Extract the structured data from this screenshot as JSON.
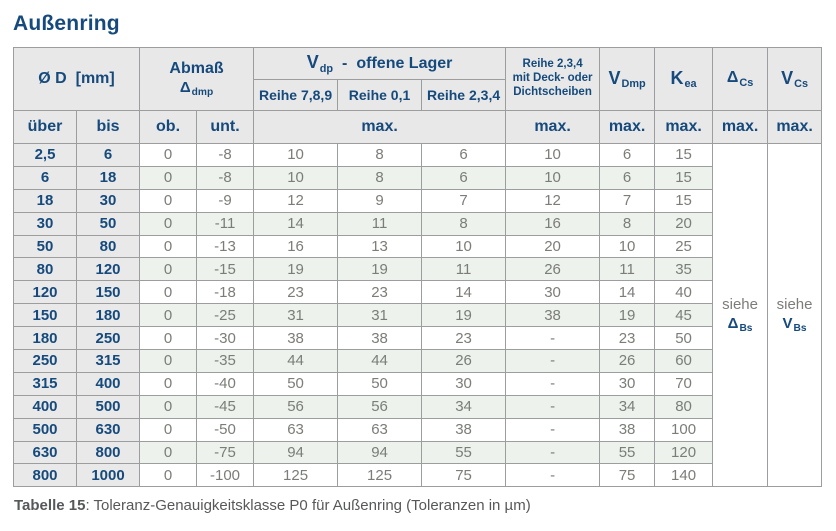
{
  "title": "Außenring",
  "header": {
    "d_label": "Ø D",
    "d_unit": "[mm]",
    "abmass_line1": "Abmaß",
    "abmass_symbol": "Δ",
    "abmass_sub": "dmp",
    "vdp_symbol": "V",
    "vdp_sub": "dp",
    "vdp_dash": "-",
    "vdp_rest": "offene Lager",
    "reihe789": "Reihe 7,8,9",
    "reihe01": "Reihe 0,1",
    "reihe234": "Reihe 2,3,4",
    "deck_line1": "Reihe 2,3,4",
    "deck_line2": "mit Deck- oder",
    "deck_line3": "Dichtscheiben",
    "vdmp_base": "V",
    "vdmp_sub": "Dmp",
    "kea_base": "K",
    "kea_sub": "ea",
    "dcs_base": "Δ",
    "dcs_sub": "Cs",
    "vcs_base": "V",
    "vcs_sub": "Cs",
    "ueber": "über",
    "bis": "bis",
    "ob": "ob.",
    "unt": "unt.",
    "max": "max."
  },
  "siehe": {
    "word": "siehe",
    "delta_symbol": "Δ",
    "delta_sub": "Bs",
    "v_symbol": "V",
    "v_sub": "Bs"
  },
  "rows": [
    [
      "2,5",
      "6",
      "0",
      "-8",
      "10",
      "8",
      "6",
      "10",
      "6",
      "15"
    ],
    [
      "6",
      "18",
      "0",
      "-8",
      "10",
      "8",
      "6",
      "10",
      "6",
      "15"
    ],
    [
      "18",
      "30",
      "0",
      "-9",
      "12",
      "9",
      "7",
      "12",
      "7",
      "15"
    ],
    [
      "30",
      "50",
      "0",
      "-11",
      "14",
      "11",
      "8",
      "16",
      "8",
      "20"
    ],
    [
      "50",
      "80",
      "0",
      "-13",
      "16",
      "13",
      "10",
      "20",
      "10",
      "25"
    ],
    [
      "80",
      "120",
      "0",
      "-15",
      "19",
      "19",
      "11",
      "26",
      "11",
      "35"
    ],
    [
      "120",
      "150",
      "0",
      "-18",
      "23",
      "23",
      "14",
      "30",
      "14",
      "40"
    ],
    [
      "150",
      "180",
      "0",
      "-25",
      "31",
      "31",
      "19",
      "38",
      "19",
      "45"
    ],
    [
      "180",
      "250",
      "0",
      "-30",
      "38",
      "38",
      "23",
      "-",
      "23",
      "50"
    ],
    [
      "250",
      "315",
      "0",
      "-35",
      "44",
      "44",
      "26",
      "-",
      "26",
      "60"
    ],
    [
      "315",
      "400",
      "0",
      "-40",
      "50",
      "50",
      "30",
      "-",
      "30",
      "70"
    ],
    [
      "400",
      "500",
      "0",
      "-45",
      "56",
      "56",
      "34",
      "-",
      "34",
      "80"
    ],
    [
      "500",
      "630",
      "0",
      "-50",
      "63",
      "63",
      "38",
      "-",
      "38",
      "100"
    ],
    [
      "630",
      "800",
      "0",
      "-75",
      "94",
      "94",
      "55",
      "-",
      "55",
      "120"
    ],
    [
      "800",
      "1000",
      "0",
      "-100",
      "125",
      "125",
      "75",
      "-",
      "75",
      "140"
    ]
  ],
  "caption": {
    "label": "Tabelle 15",
    "text": ": Toleranz-Genauigkeitsklasse P0 für Außenring (Toleranzen in µm)"
  },
  "colors": {
    "navy": "#164a7c",
    "header_bg": "#e8e8e8",
    "row_tint": "#edf2ec",
    "data_text": "#7b7d78",
    "border": "#9c9d9e",
    "caption_text": "#57585a"
  }
}
